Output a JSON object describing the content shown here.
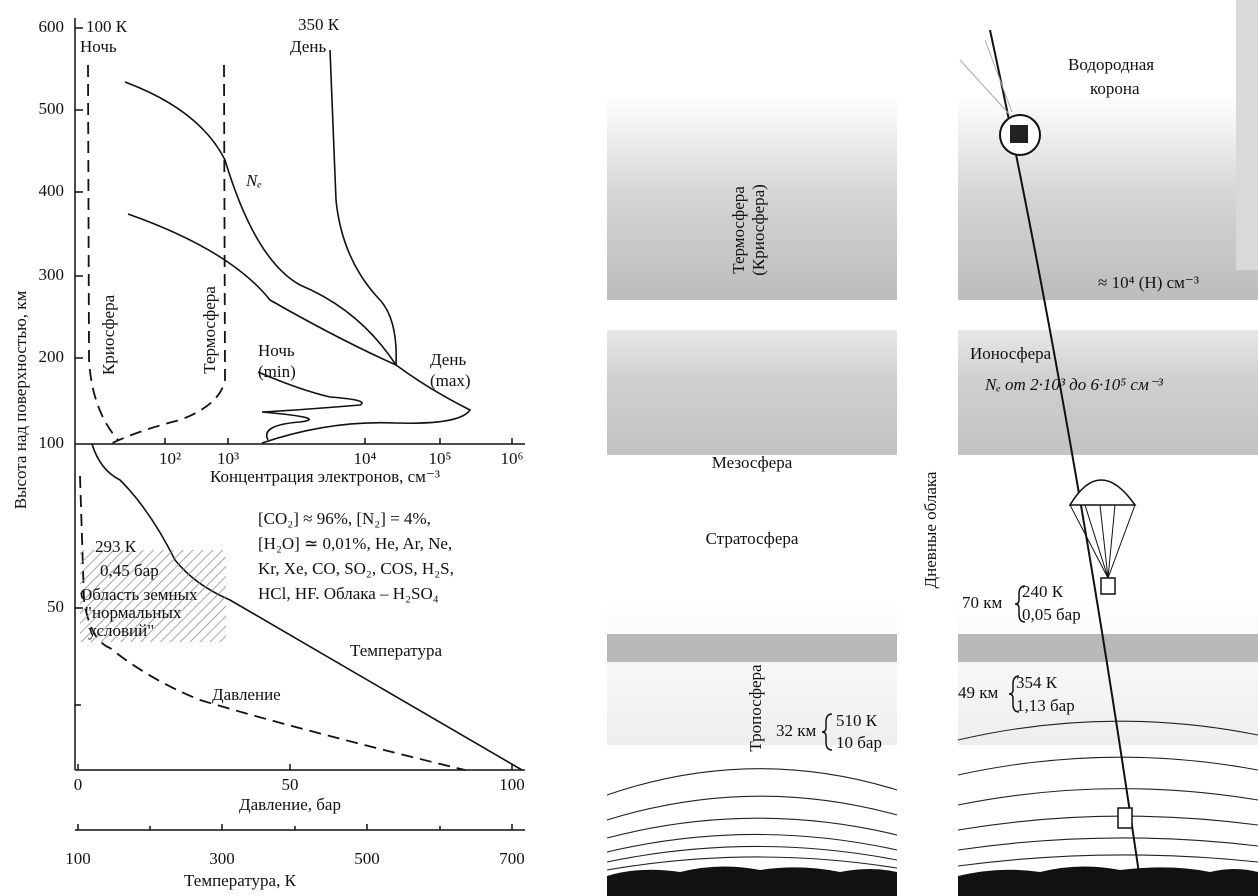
{
  "left_panel": {
    "y_axis_label": "Высота над поверхностью, км",
    "y_ticks": [
      "600",
      "500",
      "400",
      "300",
      "200",
      "100",
      "50"
    ],
    "electron_axis": {
      "ticks": [
        "10²",
        "10³",
        "10⁴",
        "10⁵",
        "10⁶"
      ],
      "label": "Концентрация электронов, см⁻³"
    },
    "pressure_axis": {
      "ticks": [
        "0",
        "50",
        "100"
      ],
      "label": "Давление, бар"
    },
    "temperature_axis": {
      "ticks": [
        "100",
        "300",
        "500",
        "700"
      ],
      "label": "Температура, К"
    },
    "labels": {
      "night_temp": "100 К",
      "night": "Ночь",
      "day_temp": "350 К",
      "day": "День",
      "cryosphere": "Криосфера",
      "thermosphere": "Термосфера",
      "ne": "Nₑ",
      "ne_night": "Ночь",
      "ne_min": "(min)",
      "ne_day": "День",
      "ne_max": "(max)",
      "surface_temp": "293 К",
      "surface_pressure": "0,45 бар",
      "earth_region": [
        "Область земных",
        "\"нормальных",
        "условий\""
      ],
      "composition": [
        "[CO₂] ≈ 96%, [N₂] = 4%,",
        "[H₂O] ≃ 0,01%, He, Ar, Ne,",
        "Kr, Xe, CO, SO₂, COS, H₂S,",
        "HCl, HF. Облака – H₂SO₄"
      ],
      "temperature": "Температура",
      "pressure": "Давление"
    }
  },
  "middle_panel": {
    "thermosphere": "Термосфера",
    "cryosphere": "(Криосфера)",
    "mesosphere": "Мезосфера",
    "stratosphere": "Стратосфера",
    "troposphere": "Тропосфера",
    "altitude": "32 км",
    "temperature": "510 К",
    "pressure": "10 бар"
  },
  "right_panel": {
    "corona": [
      "Водородная",
      "корона"
    ],
    "hydrogen": "≈ 10⁴ (H) см⁻³",
    "ionosphere": "Ионосфера",
    "ne_range": "Nₑ от 2·10³ до 6·10⁵ см⁻³",
    "day_clouds": "Дневные облака",
    "probe_70": {
      "altitude": "70 км",
      "temperature": "240 К",
      "pressure": "0,05 бар"
    },
    "probe_49": {
      "altitude": "49 км",
      "temperature": "354 К",
      "pressure": "1,13 бар"
    }
  }
}
